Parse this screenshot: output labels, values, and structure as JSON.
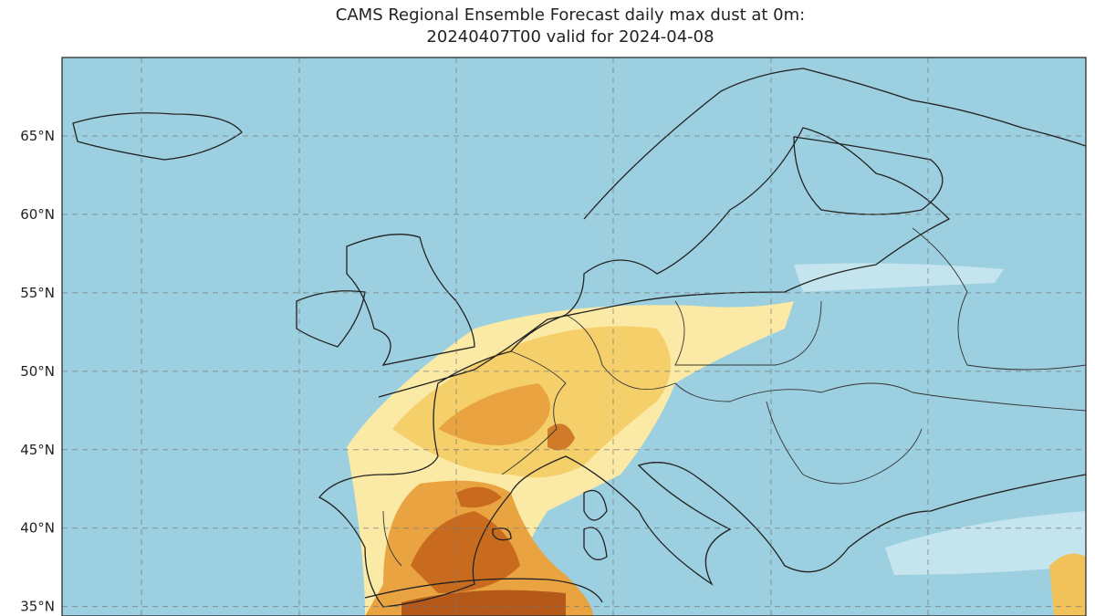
{
  "title": [
    "CAMS Regional Ensemble Forecast daily max dust at 0m:",
    "20240407T00 valid for 2024-04-08"
  ],
  "map": {
    "ylim": [
      34.4,
      70
    ],
    "lat_ticks": [
      {
        "value": 65,
        "label": "65°N"
      },
      {
        "value": 60,
        "label": "60°N"
      },
      {
        "value": 55,
        "label": "55°N"
      },
      {
        "value": 50,
        "label": "50°N"
      },
      {
        "value": 45,
        "label": "45°N"
      },
      {
        "value": 40,
        "label": "40°N"
      },
      {
        "value": 35,
        "label": "35°N"
      }
    ]
  }
}
